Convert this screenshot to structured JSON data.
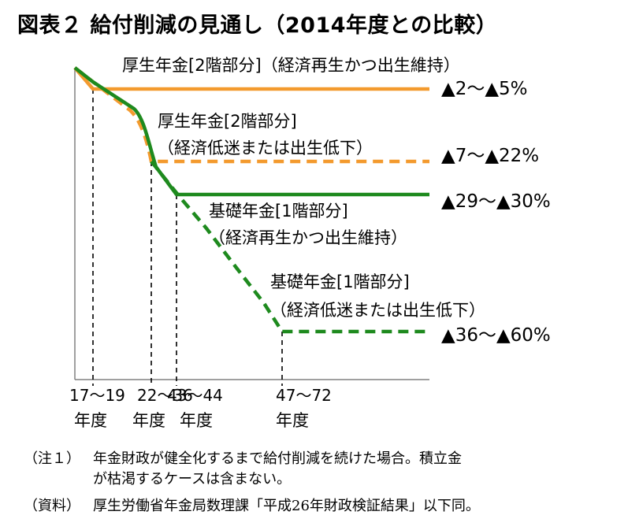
{
  "title": "図表２ 給付削減の見通し（2014年度との比較）",
  "chart_data": {
    "type": "line",
    "x_categories": [
      "17～19",
      "22～36",
      "43～44",
      "47～72"
    ],
    "x_category_suffix": "年度",
    "series": [
      {
        "name_line1": "厚生年金[2階部分]（経済再生かつ出生維持）",
        "name_line2": "",
        "label": "▲2～▲5%",
        "color": "#F39A2E",
        "dashed": false,
        "reduction_end_category": "17～19",
        "reduction_pct_range": [
          2,
          5
        ]
      },
      {
        "name_line1": "厚生年金[2階部分]",
        "name_line2": "（経済低迷または出生低下）",
        "label": "▲7～▲22%",
        "color": "#F39A2E",
        "dashed": true,
        "reduction_end_category": "22～36",
        "reduction_pct_range": [
          7,
          22
        ]
      },
      {
        "name_line1": "基礎年金[1階部分]",
        "name_line2": "（経済再生かつ出生維持）",
        "label": "▲29～▲30%",
        "color": "#1E8A1E",
        "dashed": false,
        "reduction_end_category": "43～44",
        "reduction_pct_range": [
          29,
          30
        ]
      },
      {
        "name_line1": "基礎年金[1階部分]",
        "name_line2": "（経済低迷または出生低下）",
        "label": "▲36～▲60%",
        "color": "#1E8A1E",
        "dashed": true,
        "reduction_end_category": "47～72",
        "reduction_pct_range": [
          36,
          60
        ]
      }
    ]
  },
  "notes": [
    {
      "tag": "（注１）",
      "lines": [
        "年金財政が健全化するまで給付削減を続けた場合。積立金",
        "が枯渇するケースは含まない。"
      ]
    },
    {
      "tag": "（資料）",
      "lines": [
        "厚生労働省年金局数理課「平成26年財政検証結果」以下同。"
      ]
    }
  ]
}
